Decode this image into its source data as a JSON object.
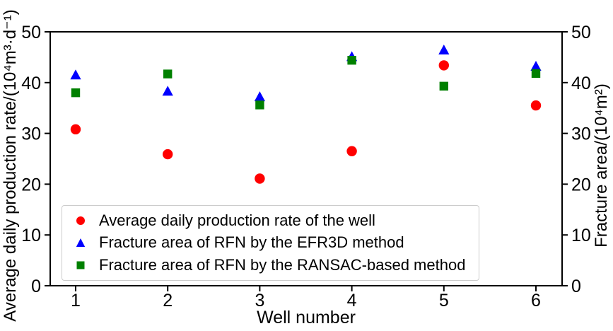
{
  "chart_data": {
    "type": "scatter",
    "title": "",
    "xlabel": "Well number",
    "ylabel_left": "Average daily production rate/(10⁴m³·d⁻¹)",
    "ylabel_right": "Fracture area/(10⁴m²)",
    "x": [
      1,
      2,
      3,
      4,
      5,
      6
    ],
    "yticks": [
      0,
      10,
      20,
      30,
      40,
      50
    ],
    "ylim": [
      0,
      50
    ],
    "grid": false,
    "legend_position": "lower left",
    "series": [
      {
        "name": "Average daily production rate of the well",
        "marker": "circle",
        "color": "#ff0000",
        "axis": "left",
        "values": [
          30.8,
          25.9,
          21.1,
          26.5,
          43.4,
          35.5
        ]
      },
      {
        "name": "Fracture area of RFN by the EFR3D method",
        "marker": "triangle",
        "color": "#0000ff",
        "axis": "right",
        "values": [
          41.5,
          38.3,
          37.2,
          45.1,
          46.4,
          43.2
        ]
      },
      {
        "name": "Fracture area of RFN by the RANSAC-based method",
        "marker": "square",
        "color": "#008000",
        "axis": "right",
        "values": [
          38.0,
          41.7,
          35.6,
          44.4,
          39.3,
          41.8
        ]
      }
    ]
  }
}
